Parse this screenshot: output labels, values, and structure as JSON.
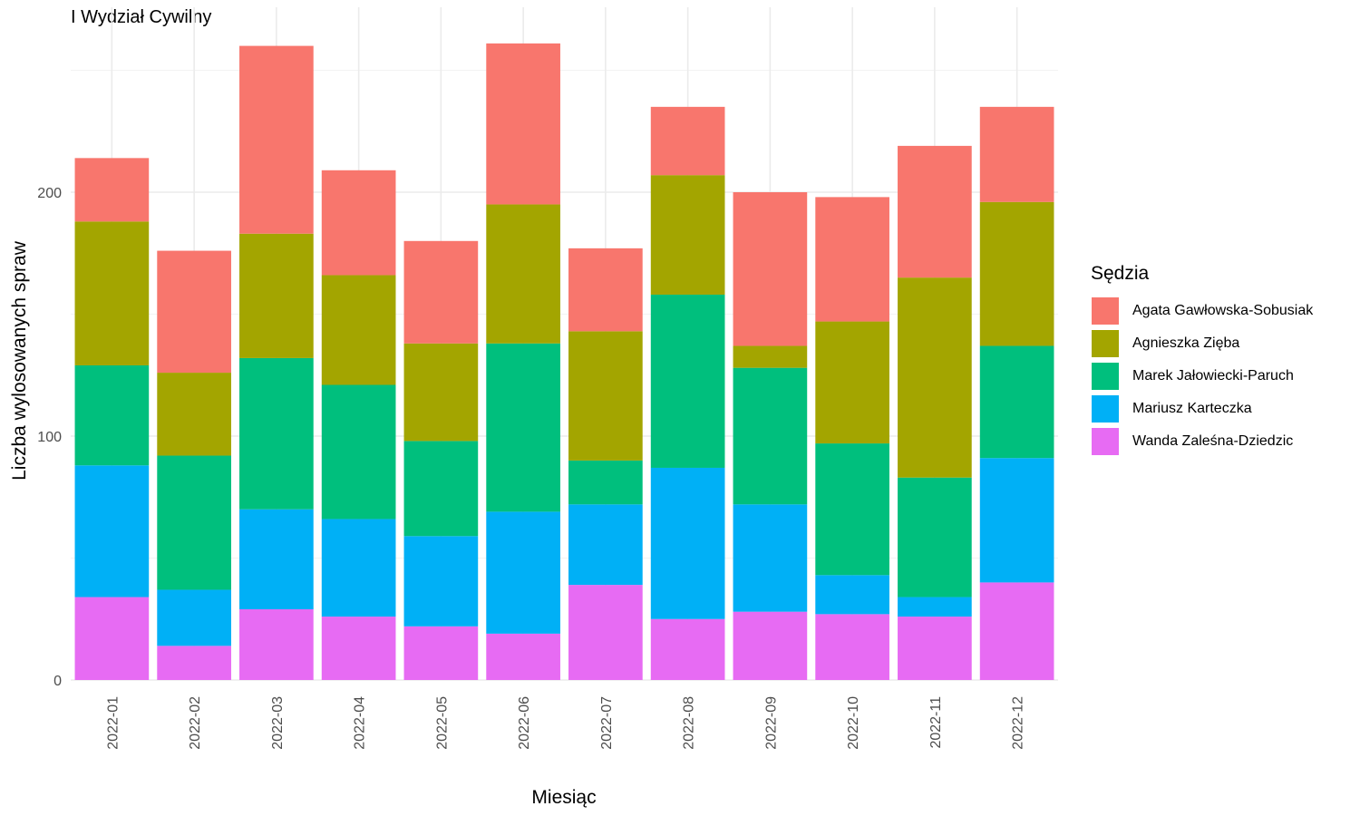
{
  "chart_data": {
    "type": "bar",
    "stacked": true,
    "title": "I Wydział Cywilny",
    "xlabel": "Miesiąc",
    "ylabel": "Liczba wylosowanych spraw",
    "ylim": [
      0,
      270
    ],
    "yticks": [
      0,
      100,
      200
    ],
    "grid": true,
    "legend_title": "Sędzia",
    "legend_position": "right",
    "categories": [
      "2022-01",
      "2022-02",
      "2022-03",
      "2022-04",
      "2022-05",
      "2022-06",
      "2022-07",
      "2022-08",
      "2022-09",
      "2022-10",
      "2022-11",
      "2022-12"
    ],
    "series": [
      {
        "name": "Wanda Zaleśna-Dziedzic",
        "color": "#E76BF3",
        "values": [
          34,
          14,
          29,
          26,
          22,
          19,
          39,
          25,
          28,
          27,
          26,
          40
        ]
      },
      {
        "name": "Mariusz Karteczka",
        "color": "#00B0F6",
        "values": [
          54,
          23,
          41,
          40,
          37,
          50,
          33,
          62,
          44,
          16,
          8,
          51
        ]
      },
      {
        "name": "Marek Jałowiecki-Paruch",
        "color": "#00BF7D",
        "values": [
          41,
          55,
          62,
          55,
          39,
          69,
          18,
          71,
          56,
          54,
          49,
          46
        ]
      },
      {
        "name": "Agnieszka Zięba",
        "color": "#A3A500",
        "values": [
          59,
          34,
          51,
          45,
          40,
          57,
          53,
          49,
          9,
          50,
          82,
          59
        ]
      },
      {
        "name": "Agata Gawłowska-Sobusiak",
        "color": "#F8766D",
        "values": [
          26,
          50,
          77,
          43,
          42,
          66,
          34,
          28,
          63,
          51,
          54,
          39
        ]
      }
    ]
  }
}
